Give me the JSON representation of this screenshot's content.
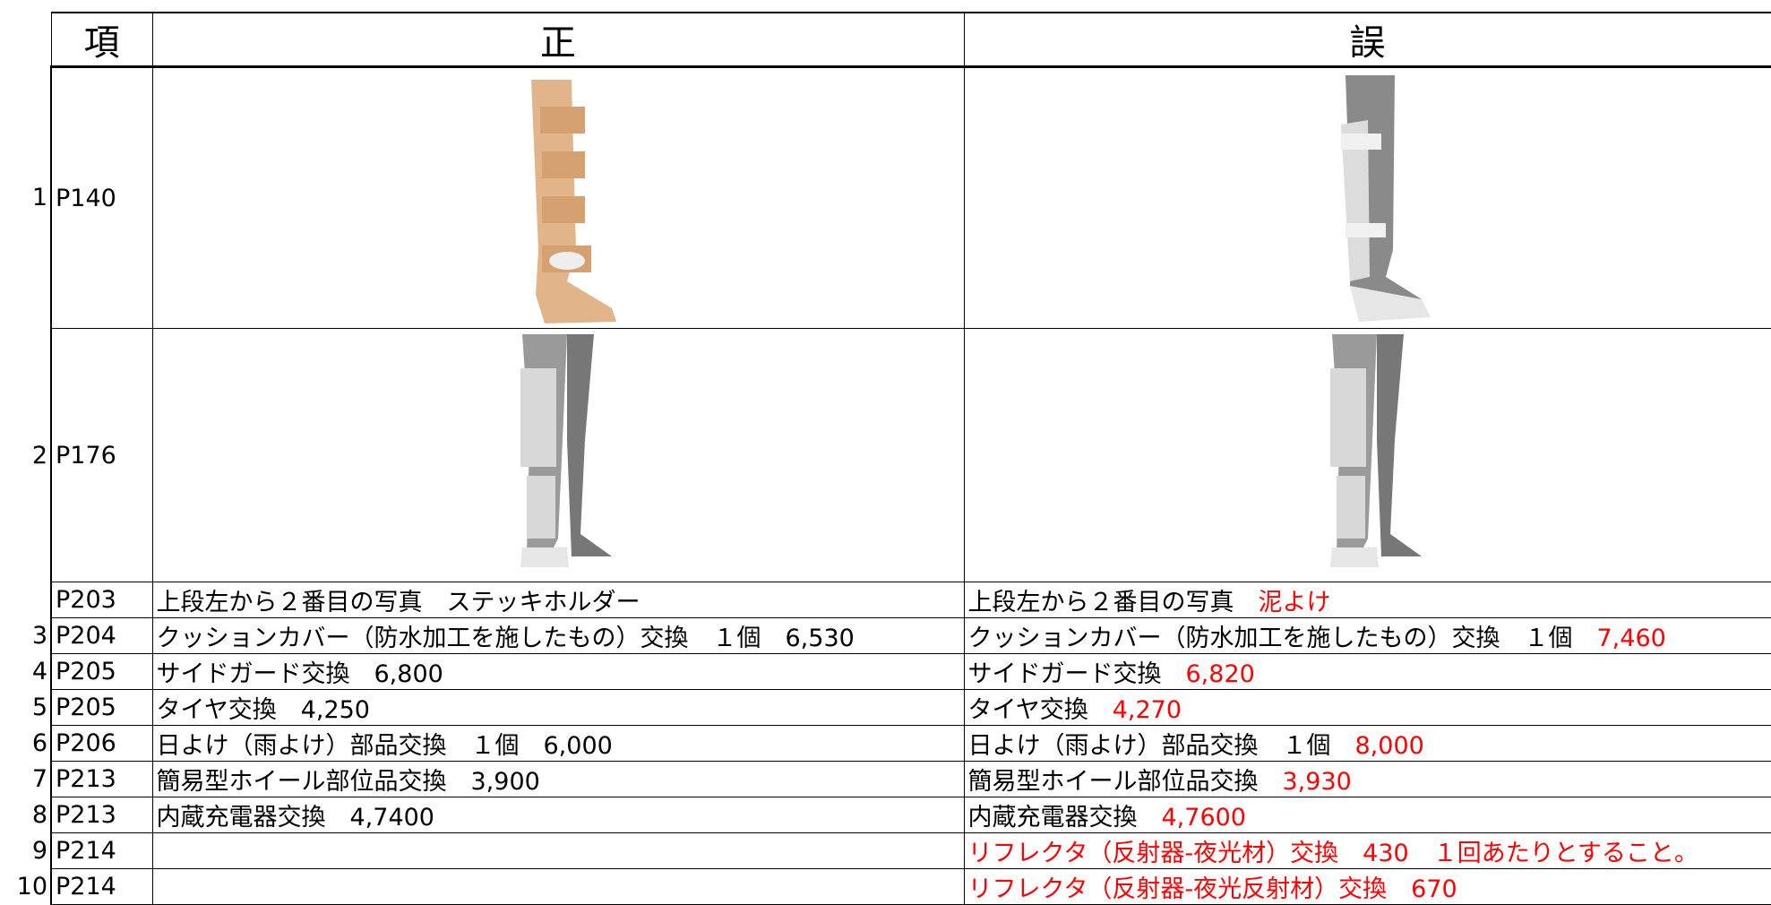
{
  "table": {
    "header": [
      "項",
      "正",
      "誤"
    ],
    "rows": [
      {
        "num": "1",
        "page": "P140"
      },
      {
        "num": "2",
        "page": "P176"
      },
      {
        "page": "P203",
        "correct": "上段左から２番目の写真　ステッキホルダー",
        "wrong": "上段左から２番目の写真　",
        "wrong_red": "泥よけ"
      },
      {
        "num": "3",
        "page": "P204",
        "correct": "クッションカバー（防水加工を施したもの）交換　１個　6,530",
        "wrong": "クッションカバー（防水加工を施したもの）交換　１個　",
        "wrong_red": "7,460"
      },
      {
        "num": "4",
        "page": "P205",
        "correct": "サイドガード交換　6,800",
        "wrong": "サイドガード交換　",
        "wrong_red": "6,820"
      },
      {
        "num": "5",
        "page": "P205",
        "correct": "タイヤ交換　4,250",
        "wrong": "タイヤ交換　",
        "wrong_red": "4,270"
      },
      {
        "num": "6",
        "page": "P206",
        "correct": "日よけ（雨よけ）部品交換　１個　6,000",
        "wrong": "日よけ（雨よけ）部品交換　１個　",
        "wrong_red": "8,000"
      },
      {
        "num": "7",
        "page": "P213",
        "correct": "簡易型ホイール部位品交換　3,900",
        "wrong": "簡易型ホイール部位品交換　",
        "wrong_red": "3,930"
      },
      {
        "num": "8",
        "page": "P213",
        "correct": "内蔵充電器交換　4,7400",
        "wrong": "内蔵充電器交換　",
        "wrong_red": "4,7600"
      },
      {
        "num": "9",
        "page": "P214",
        "wrong_red": "リフレクタ（反射器-夜光材）交換　430　１回あたりとすること。"
      },
      {
        "num": "10",
        "page": "P214",
        "wrong_red": "リフレクタ（反射器-夜光反射材）交換　670"
      }
    ]
  }
}
